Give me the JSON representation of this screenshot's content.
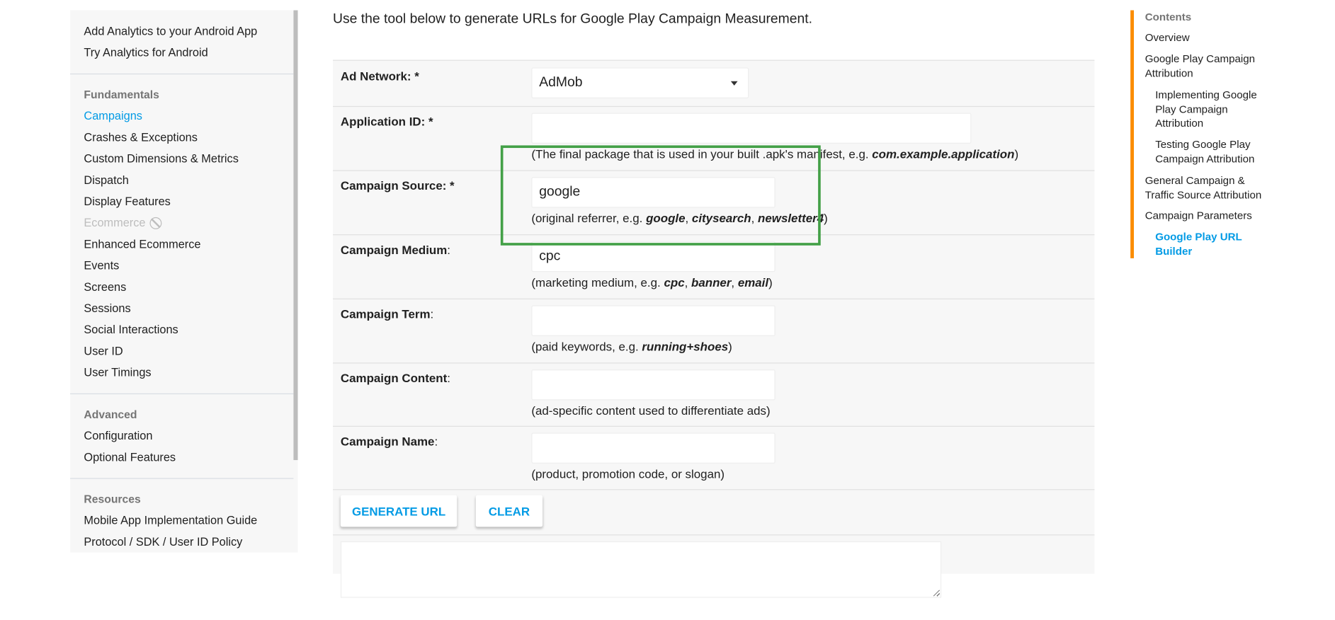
{
  "sidebar": {
    "top_items": [
      "Add Analytics to your Android App",
      "Try Analytics for Android"
    ],
    "sections": [
      {
        "heading": "Fundamentals",
        "items": [
          {
            "label": "Campaigns",
            "state": "active"
          },
          {
            "label": "Crashes & Exceptions"
          },
          {
            "label": "Custom Dimensions & Metrics"
          },
          {
            "label": "Dispatch"
          },
          {
            "label": "Display Features"
          },
          {
            "label": "Ecommerce",
            "state": "disabled",
            "icon": "not-allowed-icon"
          },
          {
            "label": "Enhanced Ecommerce"
          },
          {
            "label": "Events"
          },
          {
            "label": "Screens"
          },
          {
            "label": "Sessions"
          },
          {
            "label": "Social Interactions"
          },
          {
            "label": "User ID"
          },
          {
            "label": "User Timings"
          }
        ]
      },
      {
        "heading": "Advanced",
        "items": [
          {
            "label": "Configuration"
          },
          {
            "label": "Optional Features"
          }
        ]
      },
      {
        "heading": "Resources",
        "items": [
          {
            "label": "Mobile App Implementation Guide"
          },
          {
            "label": "Protocol / SDK / User ID Policy"
          }
        ]
      }
    ]
  },
  "intro": "Use the tool below to generate URLs for Google Play Campaign Measurement.",
  "form": {
    "fields": [
      {
        "label": "Ad Network",
        "required": true,
        "type": "select",
        "value": "AdMob"
      },
      {
        "label": "Application ID",
        "required": true,
        "type": "text",
        "value": "",
        "wide": true,
        "hint": [
          {
            "t": "(The final package that is used in your built .apk's manifest, e.g. "
          },
          {
            "t": "com.example.application",
            "em": true
          },
          {
            "t": ")"
          }
        ]
      },
      {
        "label": "Campaign Source",
        "required": true,
        "type": "text",
        "value": "google",
        "hint": [
          {
            "t": "(original referrer, e.g. "
          },
          {
            "t": "google",
            "em": true
          },
          {
            "t": ", "
          },
          {
            "t": "citysearch",
            "em": true
          },
          {
            "t": ", "
          },
          {
            "t": "newsletter4",
            "em": true
          },
          {
            "t": ")"
          }
        ]
      },
      {
        "label": "Campaign Medium",
        "type": "text",
        "value": "cpc",
        "hint": [
          {
            "t": "(marketing medium, e.g. "
          },
          {
            "t": "cpc",
            "em": true
          },
          {
            "t": ", "
          },
          {
            "t": "banner",
            "em": true
          },
          {
            "t": ", "
          },
          {
            "t": "email",
            "em": true
          },
          {
            "t": ")"
          }
        ]
      },
      {
        "label": "Campaign Term",
        "type": "text",
        "value": "",
        "hint": [
          {
            "t": "(paid keywords, e.g. "
          },
          {
            "t": "running+shoes",
            "em": true
          },
          {
            "t": ")"
          }
        ]
      },
      {
        "label": "Campaign Content",
        "type": "text",
        "value": "",
        "hint": [
          {
            "t": "(ad-specific content used to differentiate ads)"
          }
        ]
      },
      {
        "label": "Campaign Name",
        "type": "text",
        "value": "",
        "hint": [
          {
            "t": "(product, promotion code, or slogan)"
          }
        ]
      }
    ],
    "generate_label": "GENERATE URL",
    "clear_label": "CLEAR",
    "output_value": ""
  },
  "toc": {
    "heading": "Contents",
    "items": [
      {
        "label": "Overview",
        "level": 1
      },
      {
        "label": "Google Play Campaign Attribution",
        "level": 1
      },
      {
        "label": "Implementing Google Play Campaign Attribution",
        "level": 2
      },
      {
        "label": "Testing Google Play Campaign Attribution",
        "level": 2
      },
      {
        "label": "General Campaign & Traffic Source Attribution",
        "level": 1
      },
      {
        "label": "Campaign Parameters",
        "level": 1
      },
      {
        "label": "Google Play URL Builder",
        "level": 2,
        "active": true
      }
    ]
  },
  "colors": {
    "accent": "#039be5",
    "toc_bar": "#fb8c00",
    "highlight": "#43a047",
    "panel": "#f7f7f7"
  }
}
